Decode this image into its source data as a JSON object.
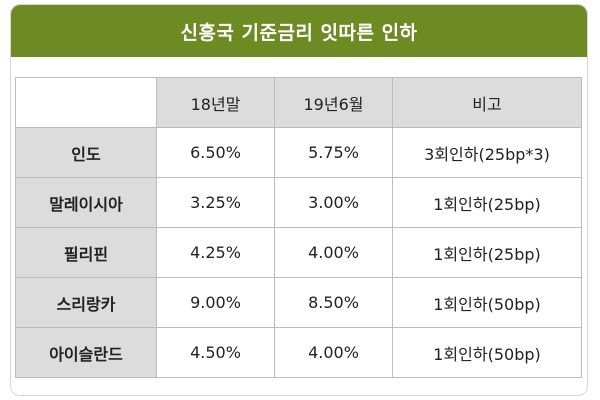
{
  "title": "신흥국 기준금리 잇따른 인하",
  "table": {
    "headers": [
      "",
      "18년말",
      "19년6월",
      "비고"
    ],
    "rows": [
      {
        "country": "인도",
        "end_2018": "6.50%",
        "jun_2019": "5.75%",
        "note": "3회인하(25bp*3)"
      },
      {
        "country": "말레이시아",
        "end_2018": "3.25%",
        "jun_2019": "3.00%",
        "note": "1회인하(25bp)"
      },
      {
        "country": "필리핀",
        "end_2018": "4.25%",
        "jun_2019": "4.00%",
        "note": "1회인하(25bp)"
      },
      {
        "country": "스리랑카",
        "end_2018": "9.00%",
        "jun_2019": "8.50%",
        "note": "1회인하(50bp)"
      },
      {
        "country": "아이슬란드",
        "end_2018": "4.50%",
        "jun_2019": "4.00%",
        "note": "1회인하(50bp)"
      }
    ]
  },
  "colors": {
    "title_bg": "#6e8a23",
    "header_bg": "#dcdcdc",
    "border": "#bcbcbc"
  }
}
